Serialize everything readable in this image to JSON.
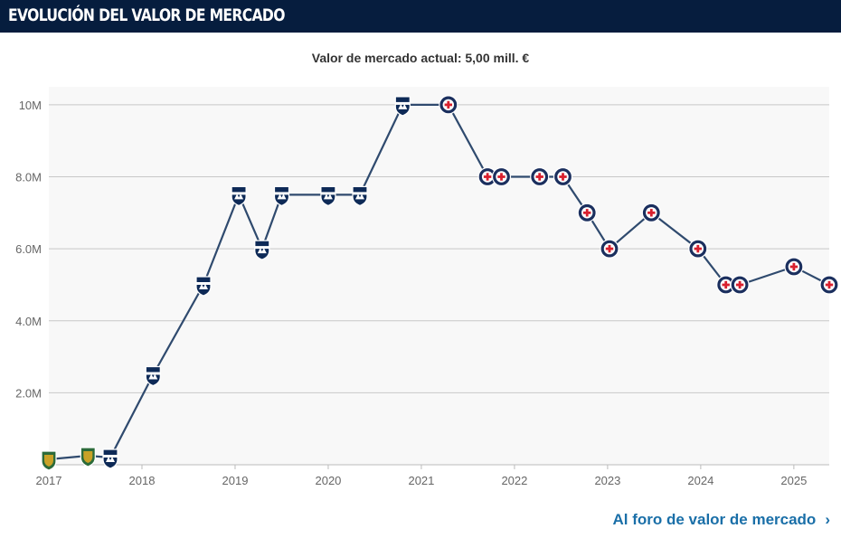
{
  "header": {
    "title": "EVOLUCIÓN DEL VALOR DE MERCADO"
  },
  "subtitle": "Valor de mercado actual: 5,00 mill. €",
  "footer": {
    "link_label": "Al foro de valor de mercado",
    "chevron_icon": "chevron-right-icon"
  },
  "colors": {
    "header_bg": "#061d3e",
    "line": "#2f4a6e",
    "grid": "#c8c8c8",
    "plot_bg": "#f8f8f8",
    "link": "#1a6fa8"
  },
  "chart_data": {
    "type": "line",
    "title": "",
    "xlabel": "",
    "ylabel": "",
    "x_ticks": [
      "2017",
      "2018",
      "2019",
      "2020",
      "2021",
      "2022",
      "2023",
      "2024",
      "2025"
    ],
    "y_ticks": [
      "2.0M",
      "4.0M",
      "6.0M",
      "8.0M",
      "10M"
    ],
    "y_tick_values": [
      2000000,
      4000000,
      6000000,
      8000000,
      10000000
    ],
    "ylim": [
      0,
      10500000
    ],
    "xlim": [
      2017.0,
      2025.38
    ],
    "grid": true,
    "series": [
      {
        "points": [
          {
            "date": "2017-01-01",
            "x": 2017.0,
            "value": 150000,
            "club_icon": "green-club-crest-icon"
          },
          {
            "date": "2017-06-01",
            "x": 2017.42,
            "value": 250000,
            "club_icon": "green-club-crest-icon"
          },
          {
            "date": "2017-09-01",
            "x": 2017.66,
            "value": 200000,
            "club_icon": "monterrey-crest-icon"
          },
          {
            "date": "2018-02-01",
            "x": 2018.12,
            "value": 2500000,
            "club_icon": "monterrey-crest-icon"
          },
          {
            "date": "2018-09-01",
            "x": 2018.66,
            "value": 5000000,
            "club_icon": "monterrey-crest-icon"
          },
          {
            "date": "2019-01-01",
            "x": 2019.04,
            "value": 7500000,
            "club_icon": "monterrey-crest-icon"
          },
          {
            "date": "2019-04-01",
            "x": 2019.29,
            "value": 6000000,
            "club_icon": "monterrey-crest-icon"
          },
          {
            "date": "2019-07-01",
            "x": 2019.5,
            "value": 7500000,
            "club_icon": "monterrey-crest-icon"
          },
          {
            "date": "2020-01-01",
            "x": 2020.0,
            "value": 7500000,
            "club_icon": "monterrey-crest-icon"
          },
          {
            "date": "2020-05-01",
            "x": 2020.34,
            "value": 7500000,
            "club_icon": "monterrey-crest-icon"
          },
          {
            "date": "2020-10-01",
            "x": 2020.8,
            "value": 10000000,
            "club_icon": "monterrey-crest-icon"
          },
          {
            "date": "2021-04-01",
            "x": 2021.29,
            "value": 10000000,
            "club_icon": "cruz-azul-crest-icon"
          },
          {
            "date": "2021-09-01",
            "x": 2021.71,
            "value": 8000000,
            "club_icon": "cruz-azul-crest-icon"
          },
          {
            "date": "2021-11-01",
            "x": 2021.86,
            "value": 8000000,
            "club_icon": "cruz-azul-crest-icon"
          },
          {
            "date": "2022-04-01",
            "x": 2022.27,
            "value": 8000000,
            "club_icon": "cruz-azul-crest-icon"
          },
          {
            "date": "2022-07-01",
            "x": 2022.52,
            "value": 8000000,
            "club_icon": "cruz-azul-crest-icon"
          },
          {
            "date": "2022-10-01",
            "x": 2022.78,
            "value": 7000000,
            "club_icon": "cruz-azul-crest-icon"
          },
          {
            "date": "2023-01-01",
            "x": 2023.02,
            "value": 6000000,
            "club_icon": "cruz-azul-crest-icon"
          },
          {
            "date": "2023-06-01",
            "x": 2023.47,
            "value": 7000000,
            "club_icon": "cruz-azul-crest-icon"
          },
          {
            "date": "2023-12-01",
            "x": 2023.97,
            "value": 6000000,
            "club_icon": "cruz-azul-crest-icon"
          },
          {
            "date": "2024-04-01",
            "x": 2024.27,
            "value": 5000000,
            "club_icon": "cruz-azul-crest-icon"
          },
          {
            "date": "2024-06-01",
            "x": 2024.42,
            "value": 5000000,
            "club_icon": "cruz-azul-crest-icon"
          },
          {
            "date": "2024-12-01",
            "x": 2025.0,
            "value": 5500000,
            "club_icon": "cruz-azul-crest-icon"
          },
          {
            "date": "2025-05-01",
            "x": 2025.38,
            "value": 5000000,
            "club_icon": "cruz-azul-crest-icon"
          }
        ]
      }
    ]
  }
}
